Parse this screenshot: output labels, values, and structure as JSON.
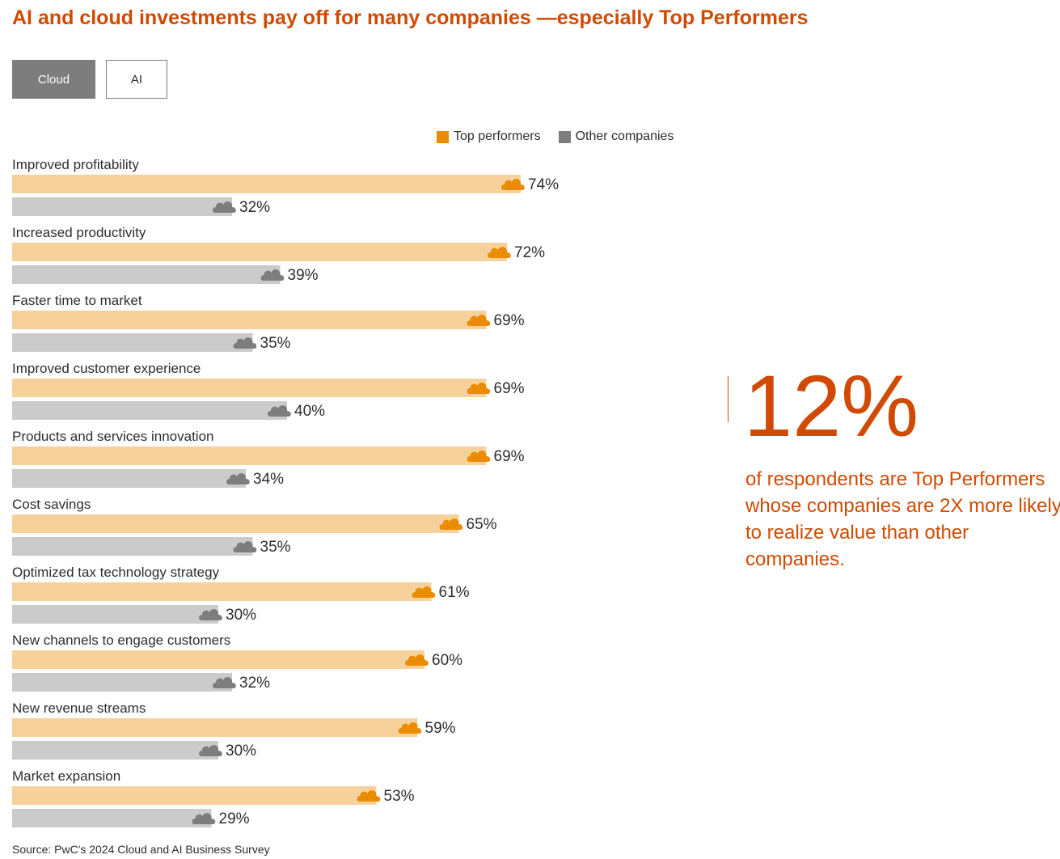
{
  "header": {
    "title": "AI and cloud investments pay off for many companies —especially Top Performers"
  },
  "tabs": [
    {
      "label": "Cloud",
      "active": true
    },
    {
      "label": "AI",
      "active": false
    }
  ],
  "legend": {
    "top_label": "Top performers",
    "other_label": "Other companies"
  },
  "colors": {
    "accent": "#d04a02",
    "top_bar": "#f7d19c",
    "top_icon": "#eb8c00",
    "other_bar": "#cbcbcb",
    "other_icon": "#7d7d7d"
  },
  "icons": {
    "marker": "cloud-icon"
  },
  "chart_data": {
    "type": "bar",
    "orientation": "horizontal",
    "title": "AI and cloud investments pay off for many companies —especially Top Performers",
    "xlabel": "",
    "ylabel": "",
    "xlim": [
      0,
      100
    ],
    "grid": false,
    "legend_position": "top-right",
    "value_suffix": "%",
    "categories": [
      "Improved profitability",
      "Increased productivity",
      "Faster time to market",
      "Improved customer experience",
      "Products and services innovation",
      "Cost savings",
      "Optimized tax technology strategy",
      "New channels to engage customers",
      "New revenue streams",
      "Market expansion"
    ],
    "series": [
      {
        "name": "Top performers",
        "values": [
          74,
          72,
          69,
          69,
          69,
          65,
          61,
          60,
          59,
          53
        ]
      },
      {
        "name": "Other companies",
        "values": [
          32,
          39,
          35,
          40,
          34,
          35,
          30,
          32,
          30,
          29
        ]
      }
    ]
  },
  "callout": {
    "big_number": "12%",
    "text": "of respondents are Top Performers whose companies are 2X more likely to realize value than other companies."
  },
  "footer": {
    "source": "Source: PwC's 2024 Cloud and AI Business Survey"
  }
}
